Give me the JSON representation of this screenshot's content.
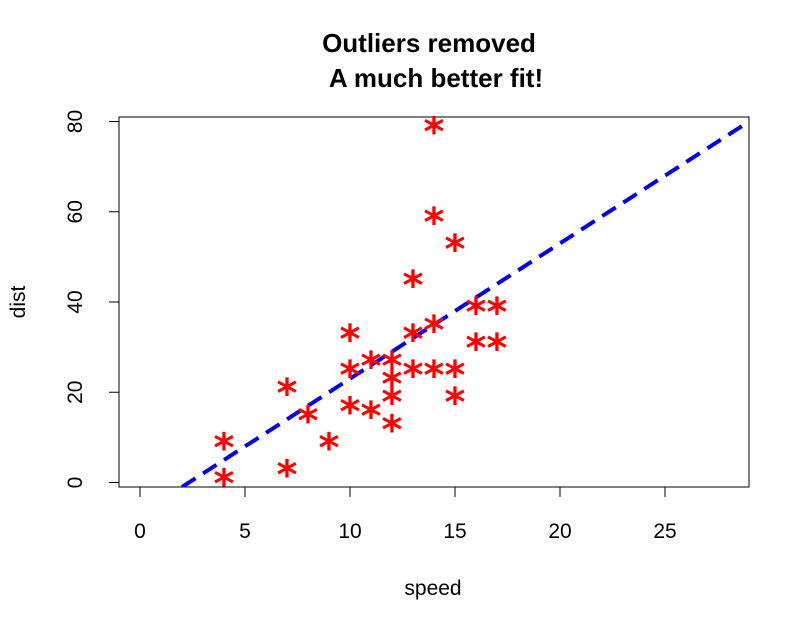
{
  "chart_data": {
    "type": "scatter",
    "title_line1": "Outliers removed",
    "title_line2": "A much better fit!",
    "xlabel": "speed",
    "ylabel": "dist",
    "xlim": [
      -1,
      29
    ],
    "ylim": [
      -1,
      81
    ],
    "x_ticks": [
      0,
      5,
      10,
      15,
      20,
      25
    ],
    "y_ticks": [
      0,
      20,
      40,
      60,
      80
    ],
    "grid": false,
    "point_symbol": "*",
    "point_color": "#ff0000",
    "fit_line": {
      "style": "dashed",
      "color": "#0000ee",
      "intercept": -7.0,
      "slope": 3.0
    },
    "points": [
      {
        "x": 4,
        "y": 2
      },
      {
        "x": 4,
        "y": 10
      },
      {
        "x": 7,
        "y": 4
      },
      {
        "x": 7,
        "y": 22
      },
      {
        "x": 8,
        "y": 16
      },
      {
        "x": 9,
        "y": 10
      },
      {
        "x": 10,
        "y": 18
      },
      {
        "x": 10,
        "y": 26
      },
      {
        "x": 10,
        "y": 34
      },
      {
        "x": 11,
        "y": 17
      },
      {
        "x": 11,
        "y": 28
      },
      {
        "x": 12,
        "y": 14
      },
      {
        "x": 12,
        "y": 20
      },
      {
        "x": 12,
        "y": 24
      },
      {
        "x": 12,
        "y": 28
      },
      {
        "x": 13,
        "y": 26
      },
      {
        "x": 13,
        "y": 34
      },
      {
        "x": 13,
        "y": 46
      },
      {
        "x": 14,
        "y": 26
      },
      {
        "x": 14,
        "y": 36
      },
      {
        "x": 14,
        "y": 60
      },
      {
        "x": 14,
        "y": 80
      },
      {
        "x": 15,
        "y": 20
      },
      {
        "x": 15,
        "y": 26
      },
      {
        "x": 15,
        "y": 54
      },
      {
        "x": 16,
        "y": 32
      },
      {
        "x": 16,
        "y": 40
      },
      {
        "x": 17,
        "y": 32
      },
      {
        "x": 17,
        "y": 40
      }
    ]
  }
}
